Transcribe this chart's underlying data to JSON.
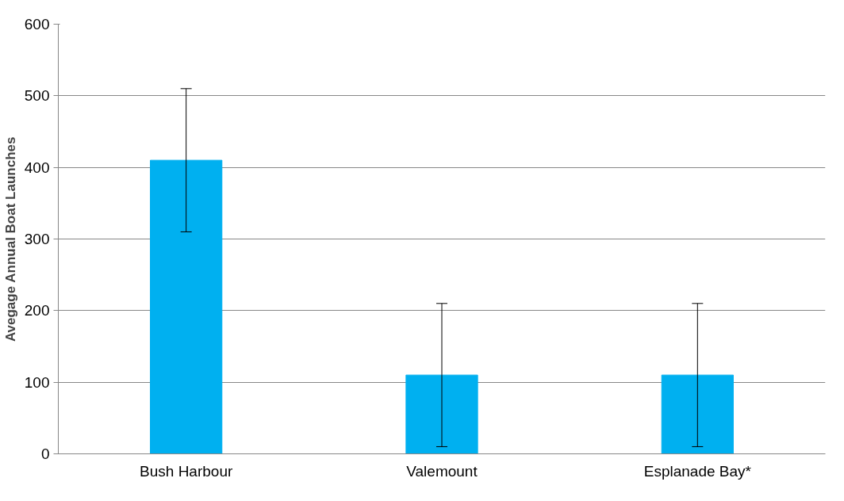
{
  "chart_data": {
    "type": "bar",
    "ylabel": "Avegage Annual Boat Launches",
    "categories": [
      "Bush Harbour",
      "Valemount",
      "Esplanade Bay*"
    ],
    "values": [
      410,
      110,
      110
    ],
    "errors": [
      100,
      100,
      100
    ],
    "color": "#00b0f0",
    "ylim": [
      0,
      600
    ],
    "yticks": [
      0,
      100,
      200,
      300,
      400,
      500,
      600
    ],
    "grid": "y"
  }
}
